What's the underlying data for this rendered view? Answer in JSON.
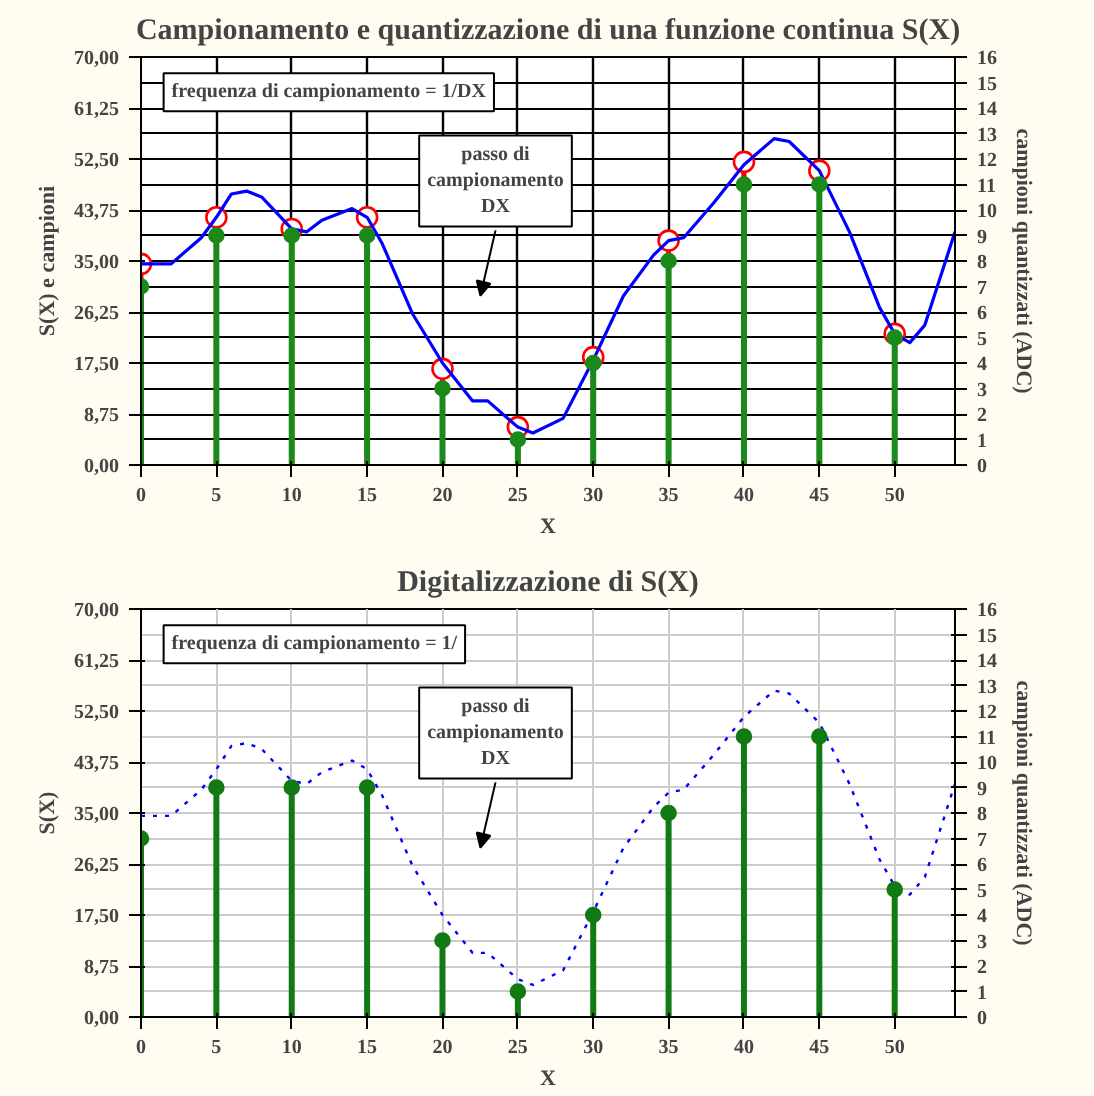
{
  "chart_data": [
    {
      "type": "line",
      "title": "Campionamento e quantizzazione di una funzione continua S(X)",
      "xlabel": "X",
      "ylabel": "S(X) e campioni",
      "y2label": "campioni quantizzati (ADC)",
      "x": [
        0,
        5,
        10,
        15,
        20,
        25,
        30,
        35,
        40,
        45,
        50
      ],
      "xlim": [
        0,
        54
      ],
      "xticks": [
        0,
        5,
        10,
        15,
        20,
        25,
        30,
        35,
        40,
        45,
        50
      ],
      "ylim": [
        0,
        70
      ],
      "yticks": [
        {
          "value": 0,
          "label": "0,00"
        },
        {
          "value": 8.75,
          "label": "8,75"
        },
        {
          "value": 17.5,
          "label": "17,50"
        },
        {
          "value": 26.25,
          "label": "26,25"
        },
        {
          "value": 35,
          "label": "35,00"
        },
        {
          "value": 43.75,
          "label": "43,75"
        },
        {
          "value": 52.5,
          "label": "52,50"
        },
        {
          "value": 61.25,
          "label": "61,25"
        },
        {
          "value": 70,
          "label": "70,00"
        }
      ],
      "y2lim": [
        0,
        16
      ],
      "y2ticks": [
        0,
        1,
        2,
        3,
        4,
        5,
        6,
        7,
        8,
        9,
        10,
        11,
        12,
        13,
        14,
        15,
        16
      ],
      "grid": true,
      "annotations": [
        "frequenza di campionamento = 1/DX",
        "passo di\ncampionamento\nDX"
      ],
      "series": [
        {
          "type": "lollipop",
          "axis": "y2",
          "color": "#1a8a1a",
          "marker": "circle",
          "values": [
            7,
            9,
            9,
            9,
            3,
            1,
            4,
            8,
            11,
            11,
            5
          ]
        },
        {
          "type": "lollipop",
          "color": "#ff0000",
          "marker": "circle",
          "values": [
            34.5,
            42.5,
            40.5,
            42.5,
            16.5,
            6.5,
            18.5,
            38.5,
            52,
            50.5,
            22.5
          ]
        },
        {
          "color": "#0000ff",
          "line_style": "solid",
          "x": [
            0,
            2,
            4,
            5,
            6,
            7,
            8,
            10,
            11,
            12,
            14,
            15,
            16,
            18,
            20,
            22,
            23,
            25,
            26,
            28,
            30,
            32,
            34,
            35,
            36,
            38,
            40,
            42,
            43,
            45,
            47,
            49,
            50,
            51,
            52,
            54
          ],
          "values": [
            34.5,
            34.5,
            39,
            42.5,
            46.5,
            47,
            46,
            40.5,
            40,
            42,
            44,
            42.5,
            38,
            26,
            17.5,
            11,
            11,
            6.5,
            5.5,
            8,
            18,
            29,
            36,
            38.5,
            39,
            45,
            51.5,
            56,
            55.5,
            50.5,
            40,
            27,
            22.5,
            21,
            24,
            40
          ]
        }
      ]
    },
    {
      "type": "line",
      "title": "Digitalizzazione di S(X)",
      "xlabel": "X",
      "ylabel": "S(X)",
      "y2label": "campioni quantizzati (ADC)",
      "x": [
        0,
        5,
        10,
        15,
        20,
        25,
        30,
        35,
        40,
        45,
        50
      ],
      "xlim": [
        0,
        54
      ],
      "xticks": [
        0,
        5,
        10,
        15,
        20,
        25,
        30,
        35,
        40,
        45,
        50
      ],
      "ylim": [
        0,
        70
      ],
      "yticks": [
        {
          "value": 0,
          "label": "0,00"
        },
        {
          "value": 8.75,
          "label": "8,75"
        },
        {
          "value": 17.5,
          "label": "17,50"
        },
        {
          "value": 26.25,
          "label": "26,25"
        },
        {
          "value": 35,
          "label": "35,00"
        },
        {
          "value": 43.75,
          "label": "43,75"
        },
        {
          "value": 52.5,
          "label": "52,50"
        },
        {
          "value": 61.25,
          "label": "61,25"
        },
        {
          "value": 70,
          "label": "70,00"
        }
      ],
      "y2lim": [
        0,
        16
      ],
      "y2ticks": [
        0,
        1,
        2,
        3,
        4,
        5,
        6,
        7,
        8,
        9,
        10,
        11,
        12,
        13,
        14,
        15,
        16
      ],
      "grid": true,
      "annotations": [
        "frequenza di campionamento = 1/",
        "passo di\ncampionamento\nDX"
      ],
      "series": [
        {
          "type": "lollipop",
          "axis": "y2",
          "color": "#127a12",
          "marker": "circle",
          "values": [
            7,
            9,
            9,
            9,
            3,
            1,
            4,
            8,
            11,
            11,
            5
          ]
        },
        {
          "color": "#0000ff",
          "line_style": "dotted",
          "x": [
            0,
            2,
            4,
            5,
            6,
            7,
            8,
            10,
            11,
            12,
            14,
            15,
            16,
            18,
            20,
            22,
            23,
            25,
            26,
            28,
            30,
            32,
            34,
            35,
            36,
            38,
            40,
            42,
            43,
            45,
            47,
            49,
            50,
            51,
            52,
            54
          ],
          "values": [
            34.5,
            34.5,
            39,
            42.5,
            46.5,
            47,
            46,
            40.5,
            40,
            42,
            44,
            42.5,
            38,
            26,
            17.5,
            11,
            11,
            6.5,
            5.5,
            8,
            18,
            29,
            36,
            38.5,
            39,
            45,
            51.5,
            56,
            55.5,
            50.5,
            40,
            27,
            22.5,
            21,
            24,
            40
          ]
        }
      ]
    }
  ]
}
